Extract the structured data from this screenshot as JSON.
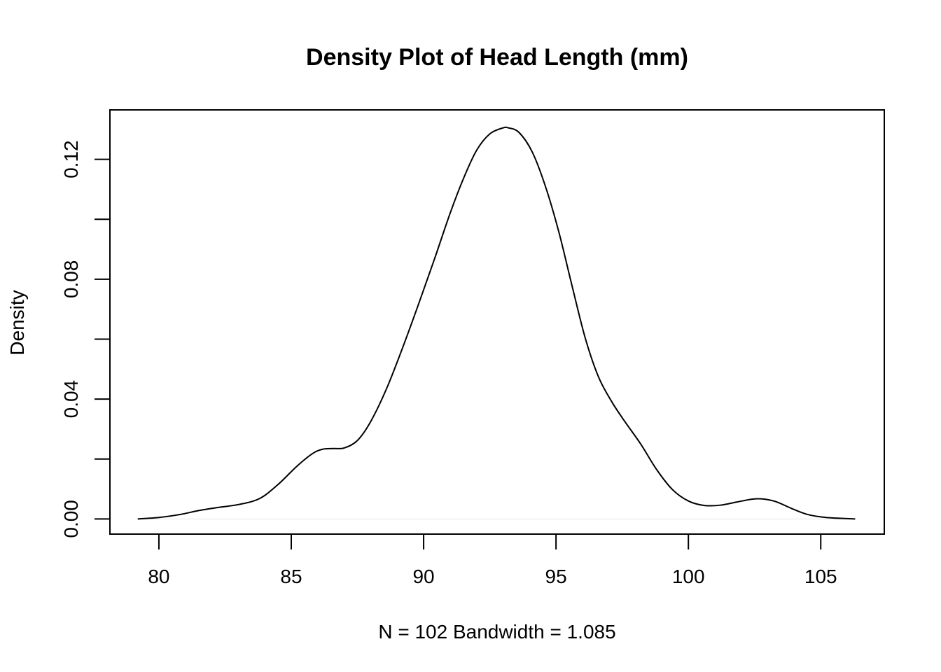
{
  "chart_data": {
    "type": "line",
    "title": "Density Plot of Head Length (mm)",
    "xlabel": "N = 102   Bandwidth = 1.085",
    "ylabel": "Density",
    "xlim": [
      78.15,
      107.4
    ],
    "ylim": [
      -0.00505,
      0.1365
    ],
    "x_ticks": [
      80,
      85,
      90,
      95,
      100,
      105
    ],
    "x_tick_labels": [
      "80",
      "85",
      "90",
      "95",
      "100",
      "105"
    ],
    "y_ticks": [
      0.0,
      0.02,
      0.04,
      0.06,
      0.08,
      0.1,
      0.12
    ],
    "y_tick_labels": [
      "0.00",
      "",
      "0.04",
      "",
      "0.08",
      "",
      "0.12"
    ],
    "grid": false,
    "legend": "none",
    "series": [
      {
        "color": "#000000",
        "x": [
          79.2,
          80.0,
          80.8,
          81.5,
          82.2,
          83.0,
          83.8,
          84.5,
          85.2,
          85.8,
          86.2,
          86.6,
          87.0,
          87.5,
          88.0,
          88.6,
          89.2,
          89.8,
          90.4,
          91.0,
          91.5,
          92.0,
          92.5,
          93.0,
          93.2,
          93.6,
          94.1,
          94.6,
          95.1,
          95.6,
          96.1,
          96.6,
          97.1,
          97.6,
          98.2,
          98.8,
          99.4,
          100.0,
          100.6,
          101.2,
          101.8,
          102.4,
          102.8,
          103.3,
          103.9,
          104.5,
          105.2,
          106.3
        ],
        "y": [
          0.0,
          0.0005,
          0.0015,
          0.0028,
          0.0038,
          0.0048,
          0.0068,
          0.0115,
          0.0175,
          0.0218,
          0.0233,
          0.0235,
          0.0237,
          0.0262,
          0.0325,
          0.0435,
          0.057,
          0.0715,
          0.0865,
          0.102,
          0.1135,
          0.123,
          0.1285,
          0.1305,
          0.1305,
          0.129,
          0.1225,
          0.111,
          0.096,
          0.078,
          0.0605,
          0.0475,
          0.0392,
          0.0325,
          0.025,
          0.0165,
          0.0098,
          0.006,
          0.0045,
          0.0046,
          0.0056,
          0.0066,
          0.0067,
          0.0058,
          0.0035,
          0.0015,
          0.0005,
          0.0
        ]
      }
    ]
  }
}
